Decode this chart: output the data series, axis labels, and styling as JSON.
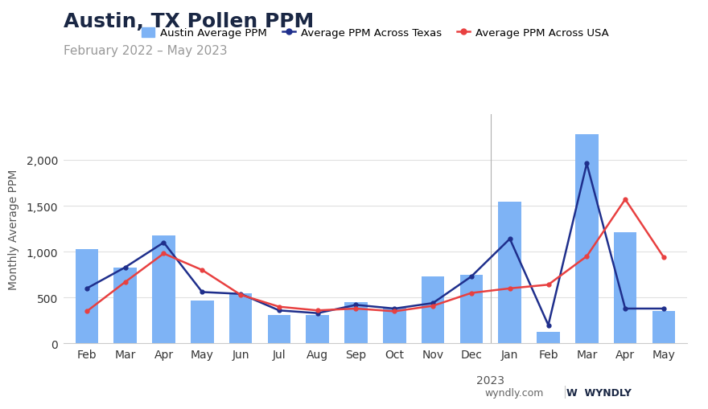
{
  "title": "Austin, TX Pollen PPM",
  "subtitle": "February 2022 – May 2023",
  "ylabel": "Monthly Average PPM",
  "categories": [
    "Feb",
    "Mar",
    "Apr",
    "May",
    "Jun",
    "Jul",
    "Aug",
    "Sep",
    "Oct",
    "Nov",
    "Dec",
    "Jan",
    "Feb",
    "Mar",
    "Apr",
    "May"
  ],
  "year_label": "2023",
  "bar_values": [
    1030,
    830,
    1180,
    470,
    550,
    310,
    310,
    450,
    390,
    730,
    750,
    1540,
    130,
    2280,
    1210,
    350
  ],
  "texas_values": [
    600,
    830,
    1100,
    560,
    540,
    360,
    330,
    420,
    380,
    440,
    730,
    1140,
    200,
    1960,
    380,
    380
  ],
  "usa_values": [
    350,
    670,
    980,
    800,
    530,
    400,
    360,
    380,
    350,
    410,
    550,
    600,
    640,
    950,
    1570,
    940
  ],
  "bar_color": "#7EB3F5",
  "texas_color": "#1F2F8C",
  "usa_color": "#E84040",
  "legend_bar_label": "Austin Average PPM",
  "legend_texas_label": "Average PPM Across Texas",
  "legend_usa_label": "Average PPM Across USA",
  "ylim": [
    0,
    2500
  ],
  "yticks": [
    0,
    500,
    1000,
    1500,
    2000
  ],
  "ytick_labels": [
    "0",
    "500",
    "1,000",
    "1,500",
    "2,000"
  ],
  "background_color": "#ffffff",
  "grid_color": "#e0e0e0",
  "title_color": "#1a2744",
  "subtitle_color": "#999999",
  "vline_index": 11,
  "watermark_text": "wyndly.com",
  "title_fontsize": 18,
  "subtitle_fontsize": 11,
  "axis_label_fontsize": 10,
  "tick_fontsize": 10,
  "legend_fontsize": 9.5
}
